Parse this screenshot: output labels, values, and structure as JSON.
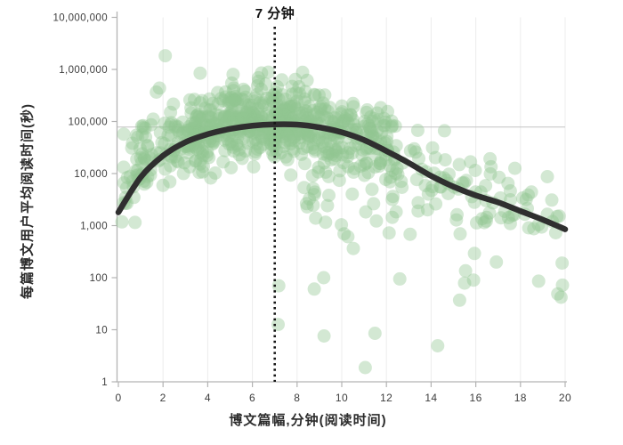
{
  "chart_data": {
    "type": "scatter",
    "title": "7 分钟",
    "annotation": {
      "label": "7 分钟",
      "x": 7
    },
    "xlabel": "博文篇幅,分钟(阅读时间)",
    "ylabel": "每篇博文用户平均阅读时间(秒)",
    "x_axis": {
      "min": 0,
      "max": 20,
      "ticks": [
        0,
        2,
        4,
        6,
        8,
        10,
        12,
        14,
        16,
        18,
        20
      ],
      "gridlines": [
        2,
        4,
        6,
        8,
        10,
        12,
        14,
        16,
        18,
        20
      ],
      "grid_color": "#ececec"
    },
    "y_axis": {
      "scale": "log",
      "min": 1,
      "max": 10000000,
      "ticks": [
        {
          "value": 10000000,
          "label": "10,000,000"
        },
        {
          "value": 1000000,
          "label": "1,000,000"
        },
        {
          "value": 100000,
          "label": "100,000"
        },
        {
          "value": 10000,
          "label": "10,000"
        },
        {
          "value": 1000,
          "label": "1,000"
        },
        {
          "value": 100,
          "label": "100"
        },
        {
          "value": 10,
          "label": "10"
        },
        {
          "value": 1,
          "label": "1"
        }
      ]
    },
    "reference_line": {
      "value": 78000,
      "color": "#c4c4c4",
      "width": 1
    },
    "vertical_line": {
      "x": 7,
      "style": "dotted",
      "color": "#141414",
      "width": 2.6
    },
    "trend_line": {
      "color": "#2f2f2f",
      "width": 6.5,
      "points": [
        [
          0,
          1800
        ],
        [
          1,
          8500
        ],
        [
          2,
          22000
        ],
        [
          3,
          40000
        ],
        [
          4,
          57000
        ],
        [
          5,
          72000
        ],
        [
          6,
          83000
        ],
        [
          7,
          88000
        ],
        [
          8,
          87000
        ],
        [
          9,
          77000
        ],
        [
          10,
          62000
        ],
        [
          11,
          44000
        ],
        [
          12,
          27000
        ],
        [
          13,
          16000
        ],
        [
          14,
          9000
        ],
        [
          15,
          5600
        ],
        [
          16,
          3800
        ],
        [
          17,
          2800
        ],
        [
          18,
          1900
        ],
        [
          19,
          1300
        ],
        [
          20,
          850
        ]
      ]
    },
    "scatter_model": {
      "note": "approx 880 unlabeled translucent points scattered around trend line",
      "count": 880,
      "seed": 12345,
      "radius": 7.5,
      "color": "#90c590",
      "opacity": 0.4,
      "log_noise_sd": 0.36,
      "log_noise_mean": 0.08,
      "left_up_skew_prob": 0.25,
      "right_down_skew_prob": 0.2,
      "deep_outlier_prob": 0.035,
      "x_gauss_mean": 6.2,
      "x_gauss_sd": 3.0
    },
    "axis_color": "#b3b3b3",
    "tick_label_color": "#3d3d3d"
  }
}
